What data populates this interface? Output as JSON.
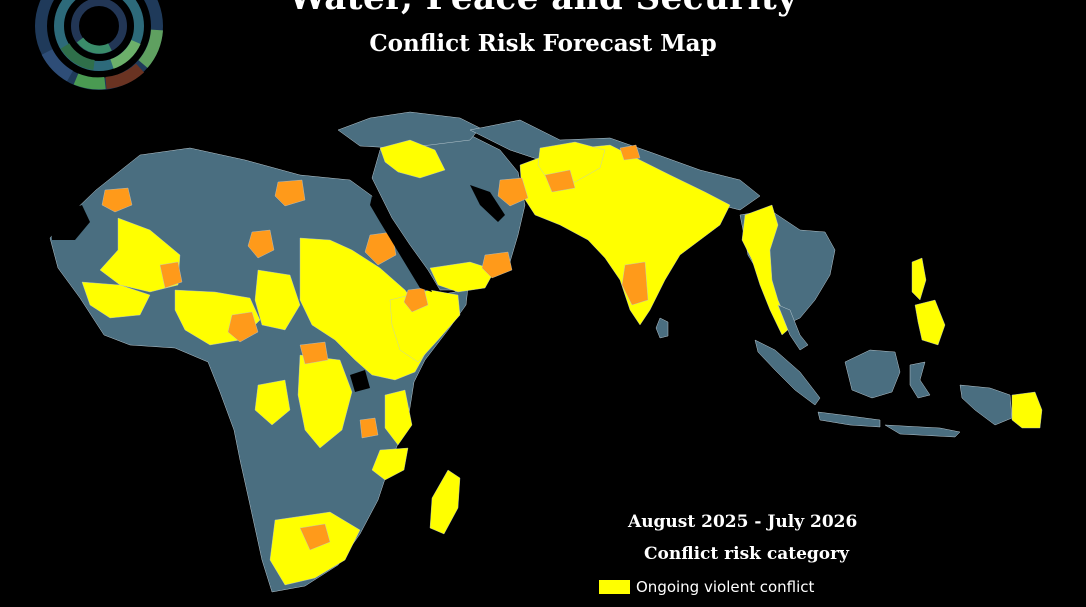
{
  "map": {
    "title": "Water, Peace and Security",
    "subtitle": "Conflict Risk Forecast Map",
    "period": "August 2025 - July 2026",
    "legend": {
      "heading": "Conflict risk category",
      "items": [
        {
          "label": "Ongoing violent conflict",
          "color": "#ffff00"
        }
      ]
    },
    "colors": {
      "background": "#000000",
      "no_risk": "#4a6e80",
      "ongoing_conflict": "#ffff00",
      "emerging_risk": "#ff9a1a"
    },
    "logo": "water-peace-security-ring-logo"
  }
}
